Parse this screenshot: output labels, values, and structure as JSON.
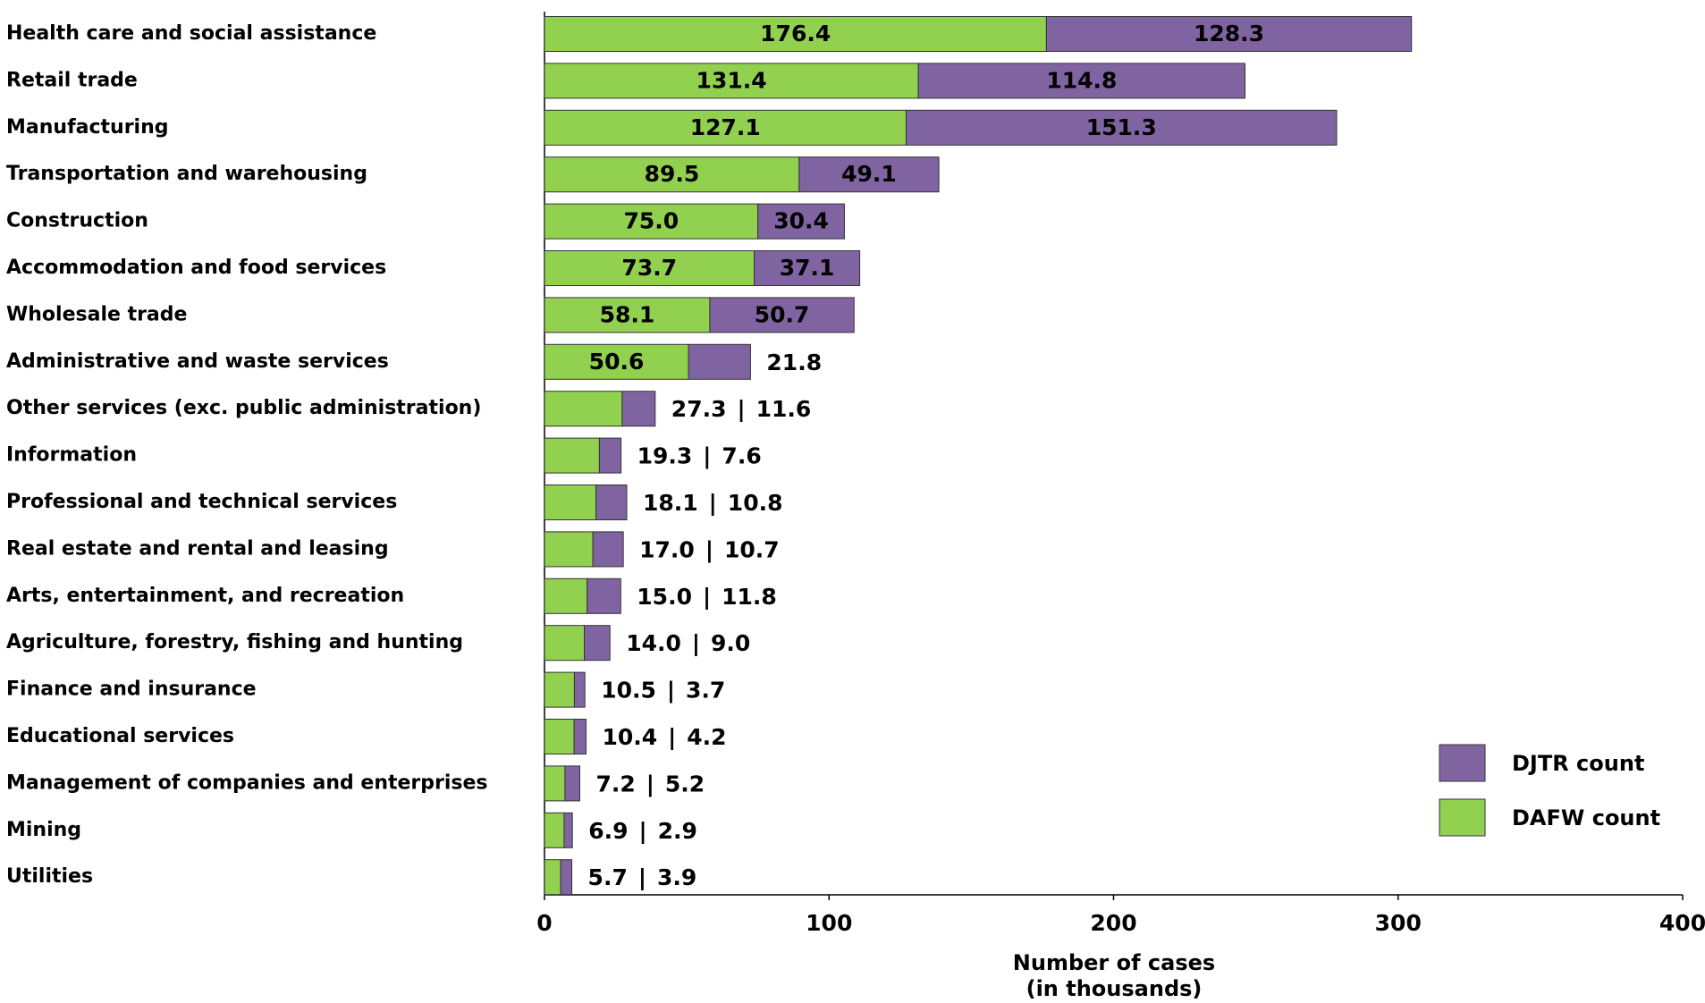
{
  "chart_data": {
    "type": "stacked-bar-horizontal",
    "categories": [
      "Health care and social assistance",
      "Retail trade",
      "Manufacturing",
      "Transportation and warehousing",
      "Construction",
      "Accommodation and food services",
      "Wholesale trade",
      "Administrative and waste services",
      "Other services (exc. public administration)",
      "Information",
      "Professional and technical services",
      "Real estate and rental and leasing",
      "Arts, entertainment, and recreation",
      "Agriculture, forestry, fishing and hunting",
      "Finance and insurance",
      "Educational services",
      "Management of companies and enterprises",
      "Mining",
      "Utilities"
    ],
    "series": [
      {
        "name": "DAFW count",
        "color": "#92d050",
        "values": [
          176.4,
          131.4,
          127.1,
          89.5,
          75.0,
          73.7,
          58.1,
          50.6,
          27.3,
          19.3,
          18.1,
          17.0,
          15.0,
          14.0,
          10.5,
          10.4,
          7.2,
          6.9,
          5.7
        ],
        "value_labels": [
          "176.4",
          "131.4",
          "127.1",
          "89.5",
          "75.0",
          "73.7",
          "58.1",
          "50.6",
          "27.3",
          "19.3",
          "18.1",
          "17.0",
          "15.0",
          "14.0",
          "10.5",
          "10.4",
          "7.2",
          "6.9",
          "5.7"
        ]
      },
      {
        "name": "DJTR count",
        "color": "#8064a2",
        "values": [
          128.3,
          114.8,
          151.3,
          49.1,
          30.4,
          37.1,
          50.7,
          21.8,
          11.6,
          7.6,
          10.8,
          10.7,
          11.8,
          9.0,
          3.7,
          4.2,
          5.2,
          2.9,
          3.9
        ],
        "value_labels": [
          "128.3",
          "114.8",
          "151.3",
          "49.1",
          "30.4",
          "37.1",
          "50.7",
          "21.8",
          "11.6",
          "7.6",
          "10.8",
          "10.7",
          "11.8",
          "9.0",
          "3.7",
          "4.2",
          "5.2",
          "2.9",
          "3.9"
        ]
      }
    ],
    "value_label_separator": "|",
    "xlim": [
      0,
      400
    ],
    "xticks": [
      0,
      100,
      200,
      300,
      400
    ],
    "xlabel": [
      "Number of cases",
      "(in thousands)"
    ],
    "legend": "lower right",
    "legend_order": [
      1,
      0
    ]
  }
}
